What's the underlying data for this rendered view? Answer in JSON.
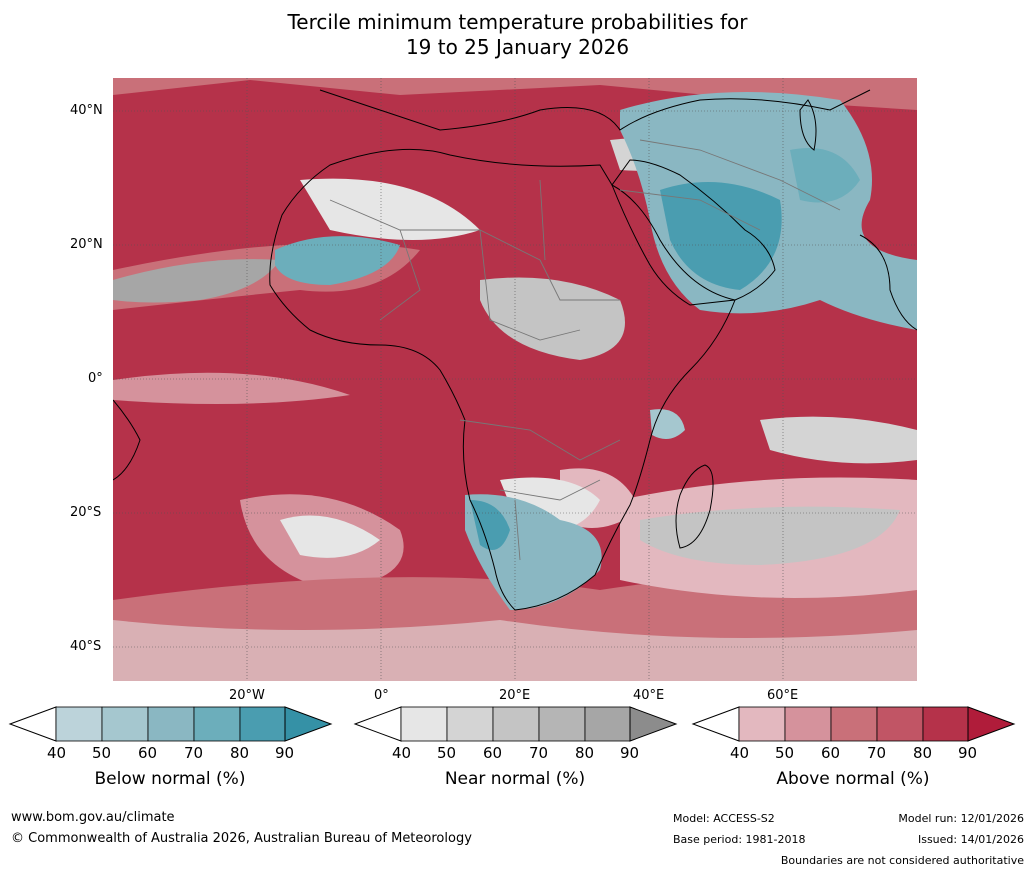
{
  "title": {
    "line1": "Tercile minimum temperature probabilities for",
    "line2": "19 to 25 January 2026"
  },
  "map": {
    "lat_labels": [
      "40°N",
      "20°N",
      "0°",
      "20°S",
      "40°S"
    ],
    "lon_labels": [
      "20°W",
      "0°",
      "20°E",
      "40°E",
      "60°E"
    ],
    "colors": {
      "above": [
        "#e3b8bf",
        "#d5929c",
        "#c97079",
        "#c15565",
        "#b5324a",
        "#b01c3a"
      ],
      "near": [
        "#e6e6e6",
        "#d4d4d4",
        "#c4c4c4",
        "#b5b5b5",
        "#a6a6a6",
        "#8c8c8c"
      ],
      "below": [
        "#bcd3da",
        "#a5c7cf",
        "#8ab7c2",
        "#6caebb",
        "#4a9db0",
        "#3591a6"
      ]
    }
  },
  "legends": [
    {
      "title": "Below normal (%)",
      "ticks": [
        "40",
        "50",
        "60",
        "70",
        "80",
        "90"
      ],
      "colors": [
        "#bcd3da",
        "#a5c7cf",
        "#8ab7c2",
        "#6caebb",
        "#4a9db0",
        "#3591a6"
      ]
    },
    {
      "title": "Near normal (%)",
      "ticks": [
        "40",
        "50",
        "60",
        "70",
        "80",
        "90"
      ],
      "colors": [
        "#e6e6e6",
        "#d4d4d4",
        "#c4c4c4",
        "#b5b5b5",
        "#a6a6a6",
        "#8c8c8c"
      ]
    },
    {
      "title": "Above normal (%)",
      "ticks": [
        "40",
        "50",
        "60",
        "70",
        "80",
        "90"
      ],
      "colors": [
        "#e3b8bf",
        "#d5929c",
        "#c97079",
        "#c15565",
        "#b5324a",
        "#b01c3a"
      ]
    }
  ],
  "footer": {
    "website": "www.bom.gov.au/climate",
    "copyright": "© Commonwealth of Australia 2026, Australian Bureau of Meteorology",
    "model": "Model: ACCESS-S2",
    "base_period": "Base period: 1981-2018",
    "model_run": "Model run: 12/01/2026",
    "issued": "Issued: 14/01/2026",
    "disclaimer": "Boundaries are not considered authoritative"
  }
}
